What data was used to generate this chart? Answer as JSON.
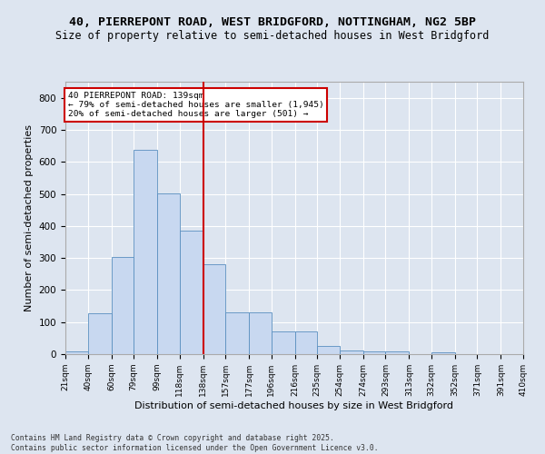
{
  "title1": "40, PIERREPONT ROAD, WEST BRIDGFORD, NOTTINGHAM, NG2 5BP",
  "title2": "Size of property relative to semi-detached houses in West Bridgford",
  "xlabel": "Distribution of semi-detached houses by size in West Bridgford",
  "ylabel": "Number of semi-detached properties",
  "bins": [
    21,
    40,
    60,
    79,
    99,
    118,
    138,
    157,
    177,
    196,
    216,
    235,
    254,
    274,
    293,
    313,
    332,
    352,
    371,
    391,
    410
  ],
  "counts": [
    8,
    128,
    303,
    638,
    502,
    385,
    280,
    131,
    131,
    70,
    70,
    25,
    12,
    8,
    8,
    0,
    5,
    0,
    0,
    0
  ],
  "bar_color": "#c8d8f0",
  "bar_edge_color": "#5a8fc0",
  "vline_x": 138,
  "vline_color": "#cc0000",
  "annotation_text": "40 PIERREPONT ROAD: 139sqm\n← 79% of semi-detached houses are smaller (1,945)\n20% of semi-detached houses are larger (501) →",
  "annotation_box_color": "#ffffff",
  "annotation_box_edge": "#cc0000",
  "ylim": [
    0,
    850
  ],
  "yticks": [
    0,
    100,
    200,
    300,
    400,
    500,
    600,
    700,
    800
  ],
  "background_color": "#dde5f0",
  "grid_color": "#ffffff",
  "footer": "Contains HM Land Registry data © Crown copyright and database right 2025.\nContains public sector information licensed under the Open Government Licence v3.0.",
  "title_fontsize": 9.5,
  "subtitle_fontsize": 8.5,
  "tick_label_fontsize": 6.5,
  "axis_label_fontsize": 8,
  "footer_fontsize": 5.8
}
